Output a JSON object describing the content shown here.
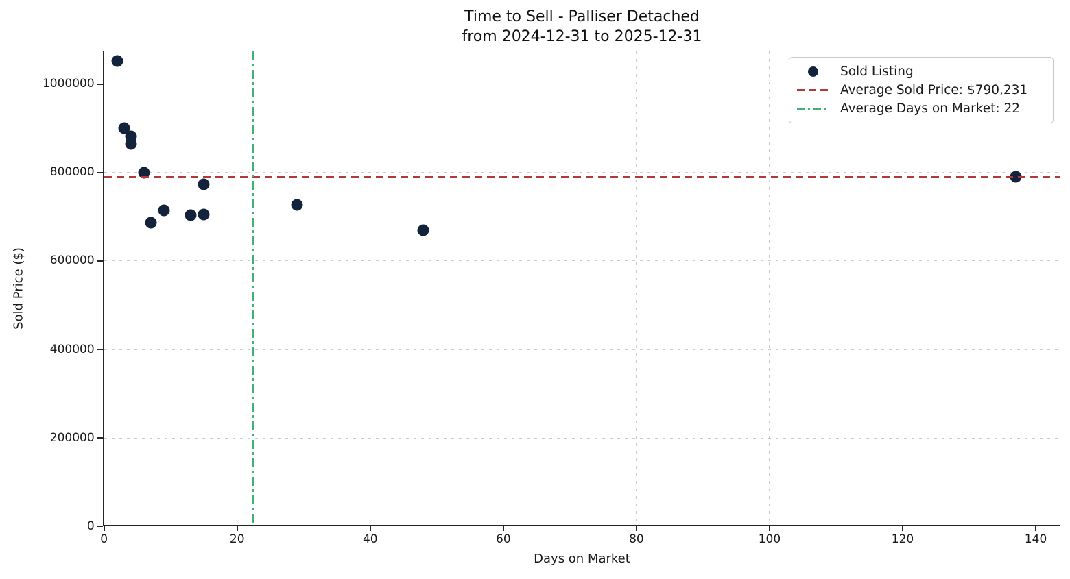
{
  "chart_data": {
    "type": "scatter",
    "title": "Time to Sell - Palliser Detached",
    "subtitle": "from 2024-12-31 to 2025-12-31",
    "xlabel": "Days on Market",
    "ylabel": "Sold Price ($)",
    "xlim": [
      0,
      143.6
    ],
    "ylim": [
      0,
      1074000
    ],
    "xticks": [
      0,
      20,
      40,
      60,
      80,
      100,
      120,
      140
    ],
    "yticks": [
      0,
      200000,
      400000,
      600000,
      800000,
      1000000
    ],
    "grid": true,
    "legend_position": "upper right",
    "series": [
      {
        "name": "Sold Listing",
        "type": "scatter",
        "color": "#14233C",
        "points": [
          [
            2,
            1053000
          ],
          [
            3,
            900000
          ],
          [
            4,
            882000
          ],
          [
            4,
            865000
          ],
          [
            6,
            800000
          ],
          [
            7,
            687000
          ],
          [
            9,
            715000
          ],
          [
            13,
            703000
          ],
          [
            15,
            706000
          ],
          [
            15,
            773000
          ],
          [
            29,
            727000
          ],
          [
            48,
            669000
          ],
          [
            137,
            790000
          ]
        ]
      },
      {
        "name": "Average Sold Price: $790,231",
        "type": "hline",
        "value": 790231,
        "color": "#B03A3A",
        "linestyle": "dashed"
      },
      {
        "name": "Average Days on Market: 22",
        "type": "vline",
        "value": 22.46,
        "color": "#3CB371",
        "linestyle": "dashdot"
      }
    ]
  }
}
